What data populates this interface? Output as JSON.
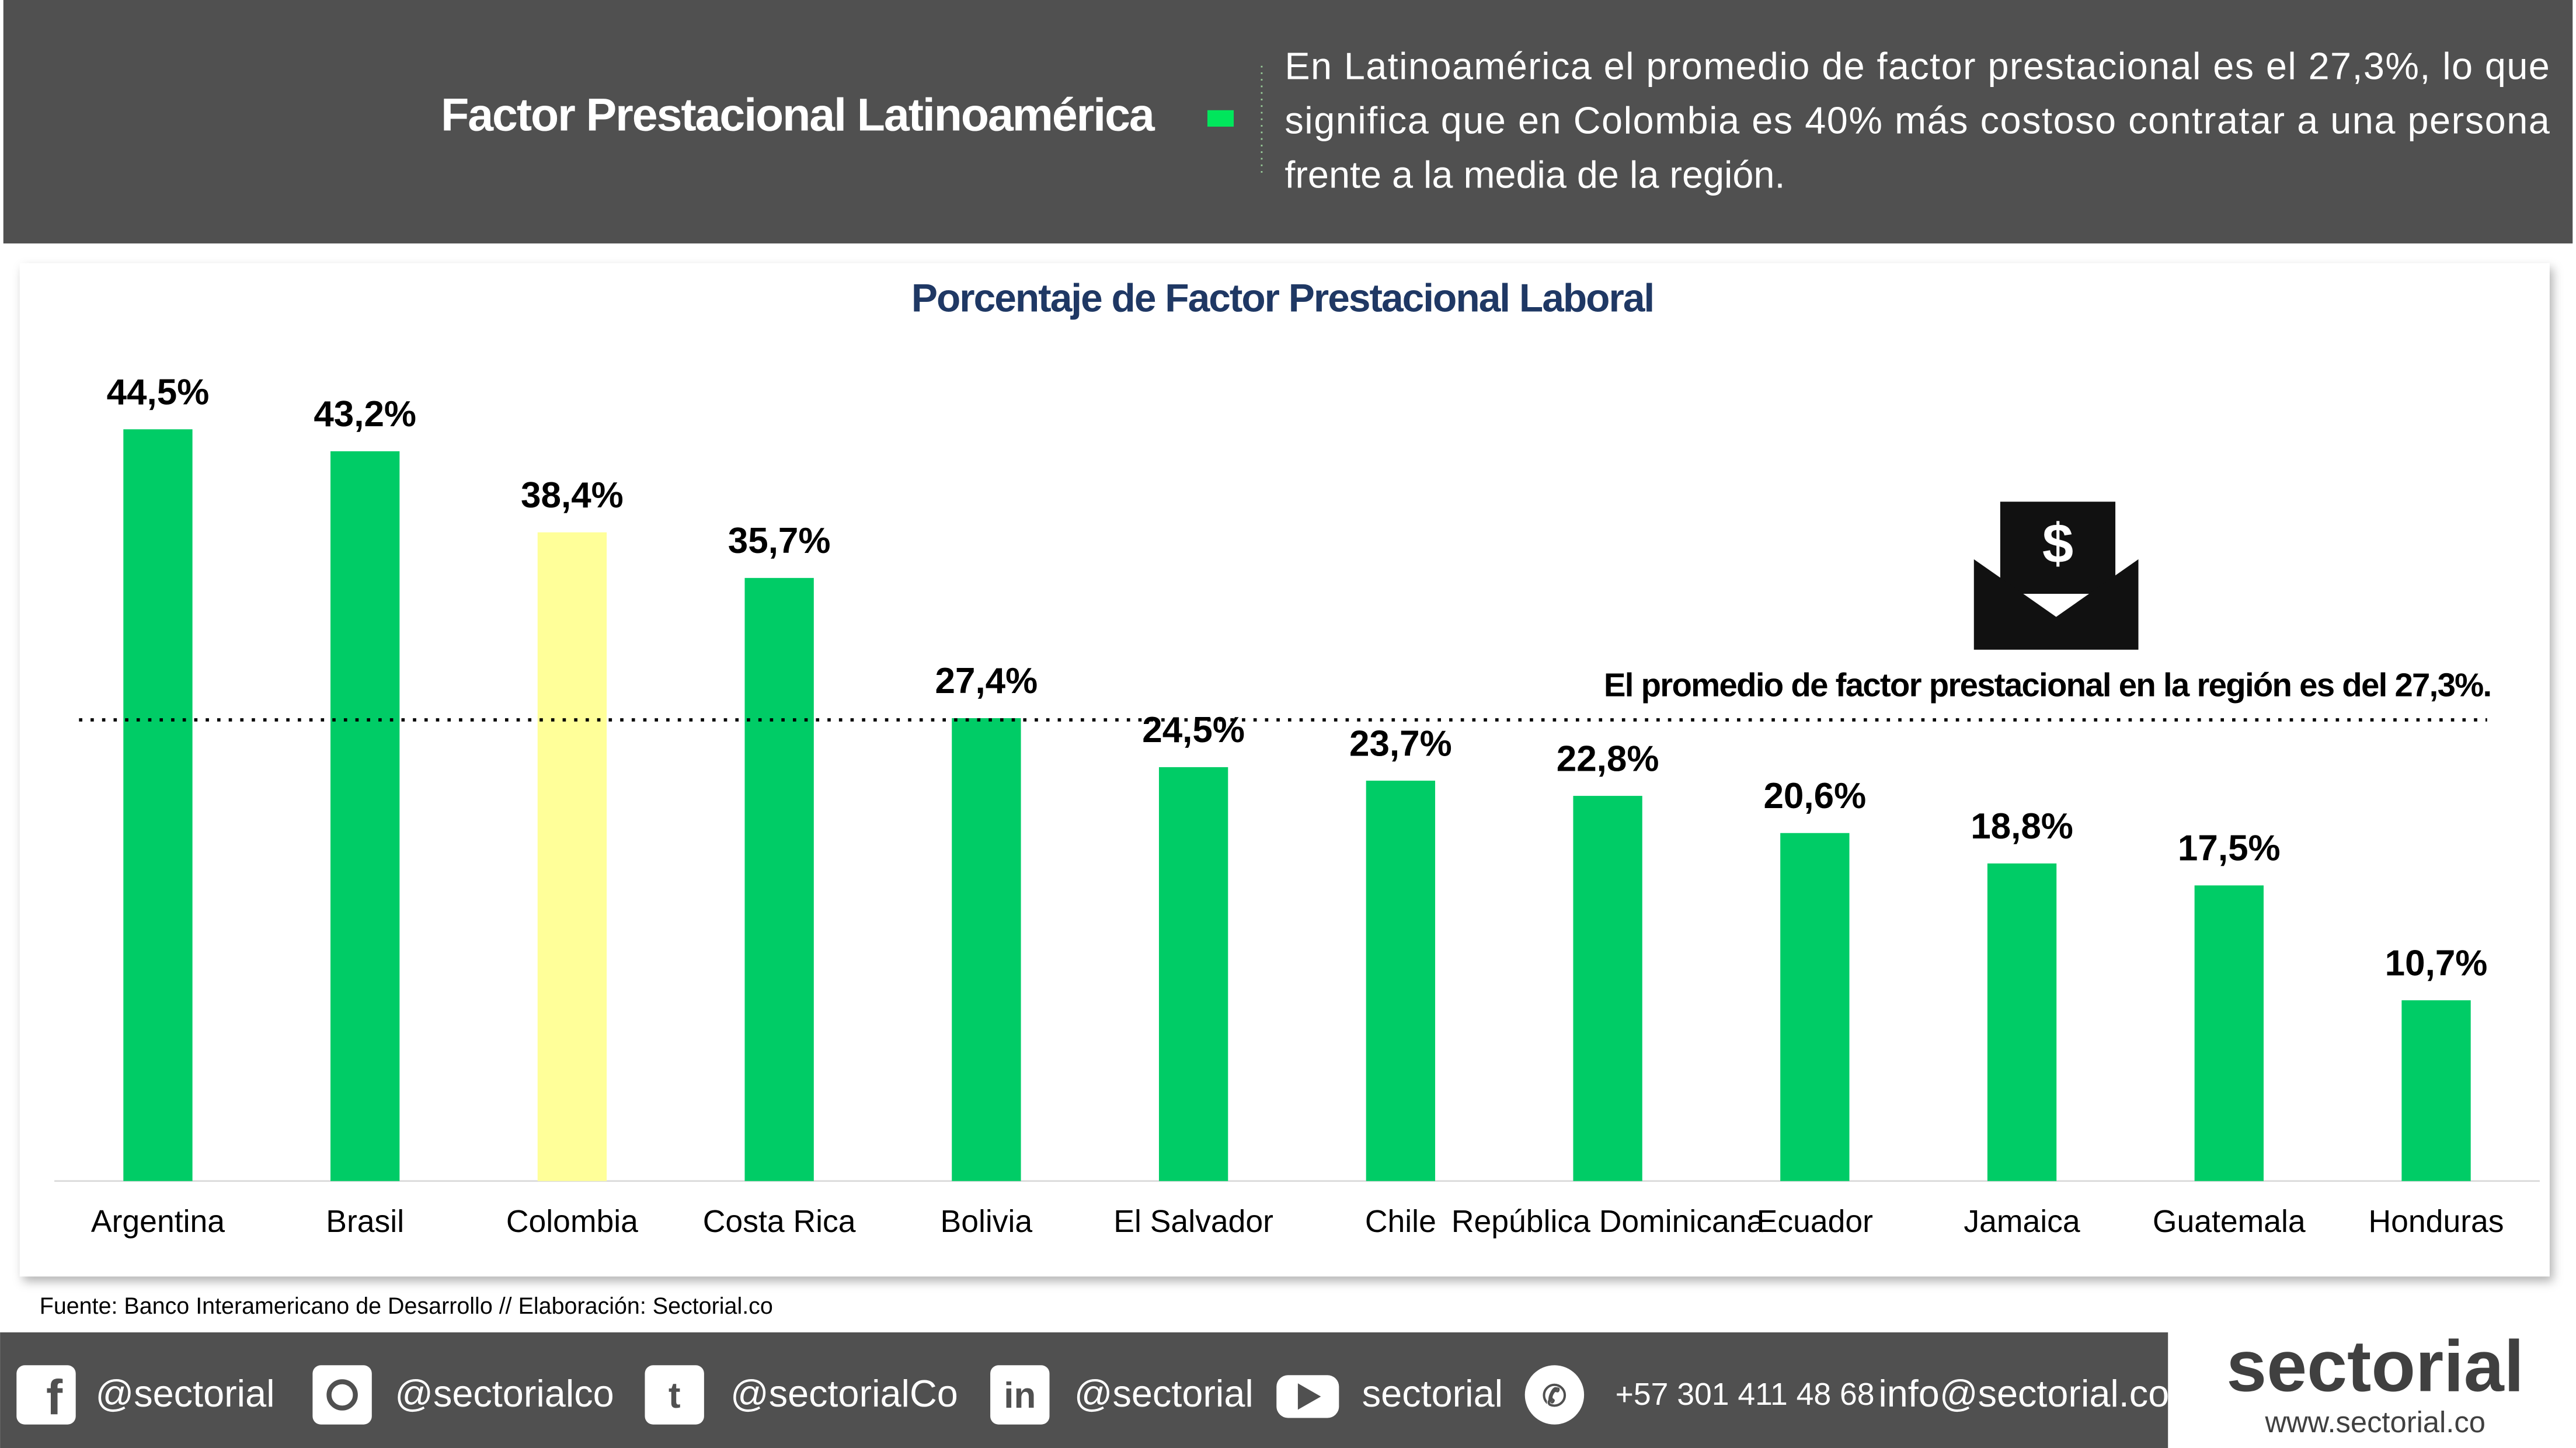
{
  "header": {
    "title": "Factor Prestacional Latinoamérica",
    "text_lines": [
      "En Latinoamérica el promedio de factor prestacional es el 27,3%, lo que",
      "significa que en Colombia es 40% más costoso contratar a una persona",
      "frente a la media de la región."
    ]
  },
  "chart_data": {
    "type": "bar",
    "title": "Porcentaje de Factor Prestacional Laboral",
    "categories": [
      "Argentina",
      "Brasil",
      "Colombia",
      "Costa Rica",
      "Bolivia",
      "El Salvador",
      "Chile",
      "República Dominicana",
      "Ecuador",
      "Jamaica",
      "Guatemala",
      "Honduras"
    ],
    "values": [
      44.5,
      43.2,
      38.4,
      35.7,
      27.4,
      24.5,
      23.7,
      22.8,
      20.6,
      18.8,
      17.5,
      10.7
    ],
    "value_labels": [
      "44,5%",
      "43,2%",
      "38,4%",
      "35,7%",
      "27,4%",
      "24,5%",
      "23,7%",
      "22,8%",
      "20,6%",
      "18,8%",
      "17,5%",
      "10,7%"
    ],
    "colors": [
      "#00cc66",
      "#00cc66",
      "#ffff99",
      "#00cc66",
      "#00cc66",
      "#00cc66",
      "#00cc66",
      "#00cc66",
      "#00cc66",
      "#00cc66",
      "#00cc66",
      "#00cc66"
    ],
    "ylim": [
      0,
      50
    ],
    "average": 27.3,
    "annotation": "El promedio de factor prestacional en la región es del 27,3%."
  },
  "source": "Fuente: Banco Interamericano de Desarrollo // Elaboración: Sectorial.co",
  "footer": {
    "social": [
      "@sectorial",
      "@sectorialco",
      "@sectorialCo",
      "@sectorial",
      "sectorial",
      "+57 301 411 48 68",
      "info@sectorial.co"
    ],
    "logo": "sectorial",
    "website": "www.sectorial.co"
  }
}
